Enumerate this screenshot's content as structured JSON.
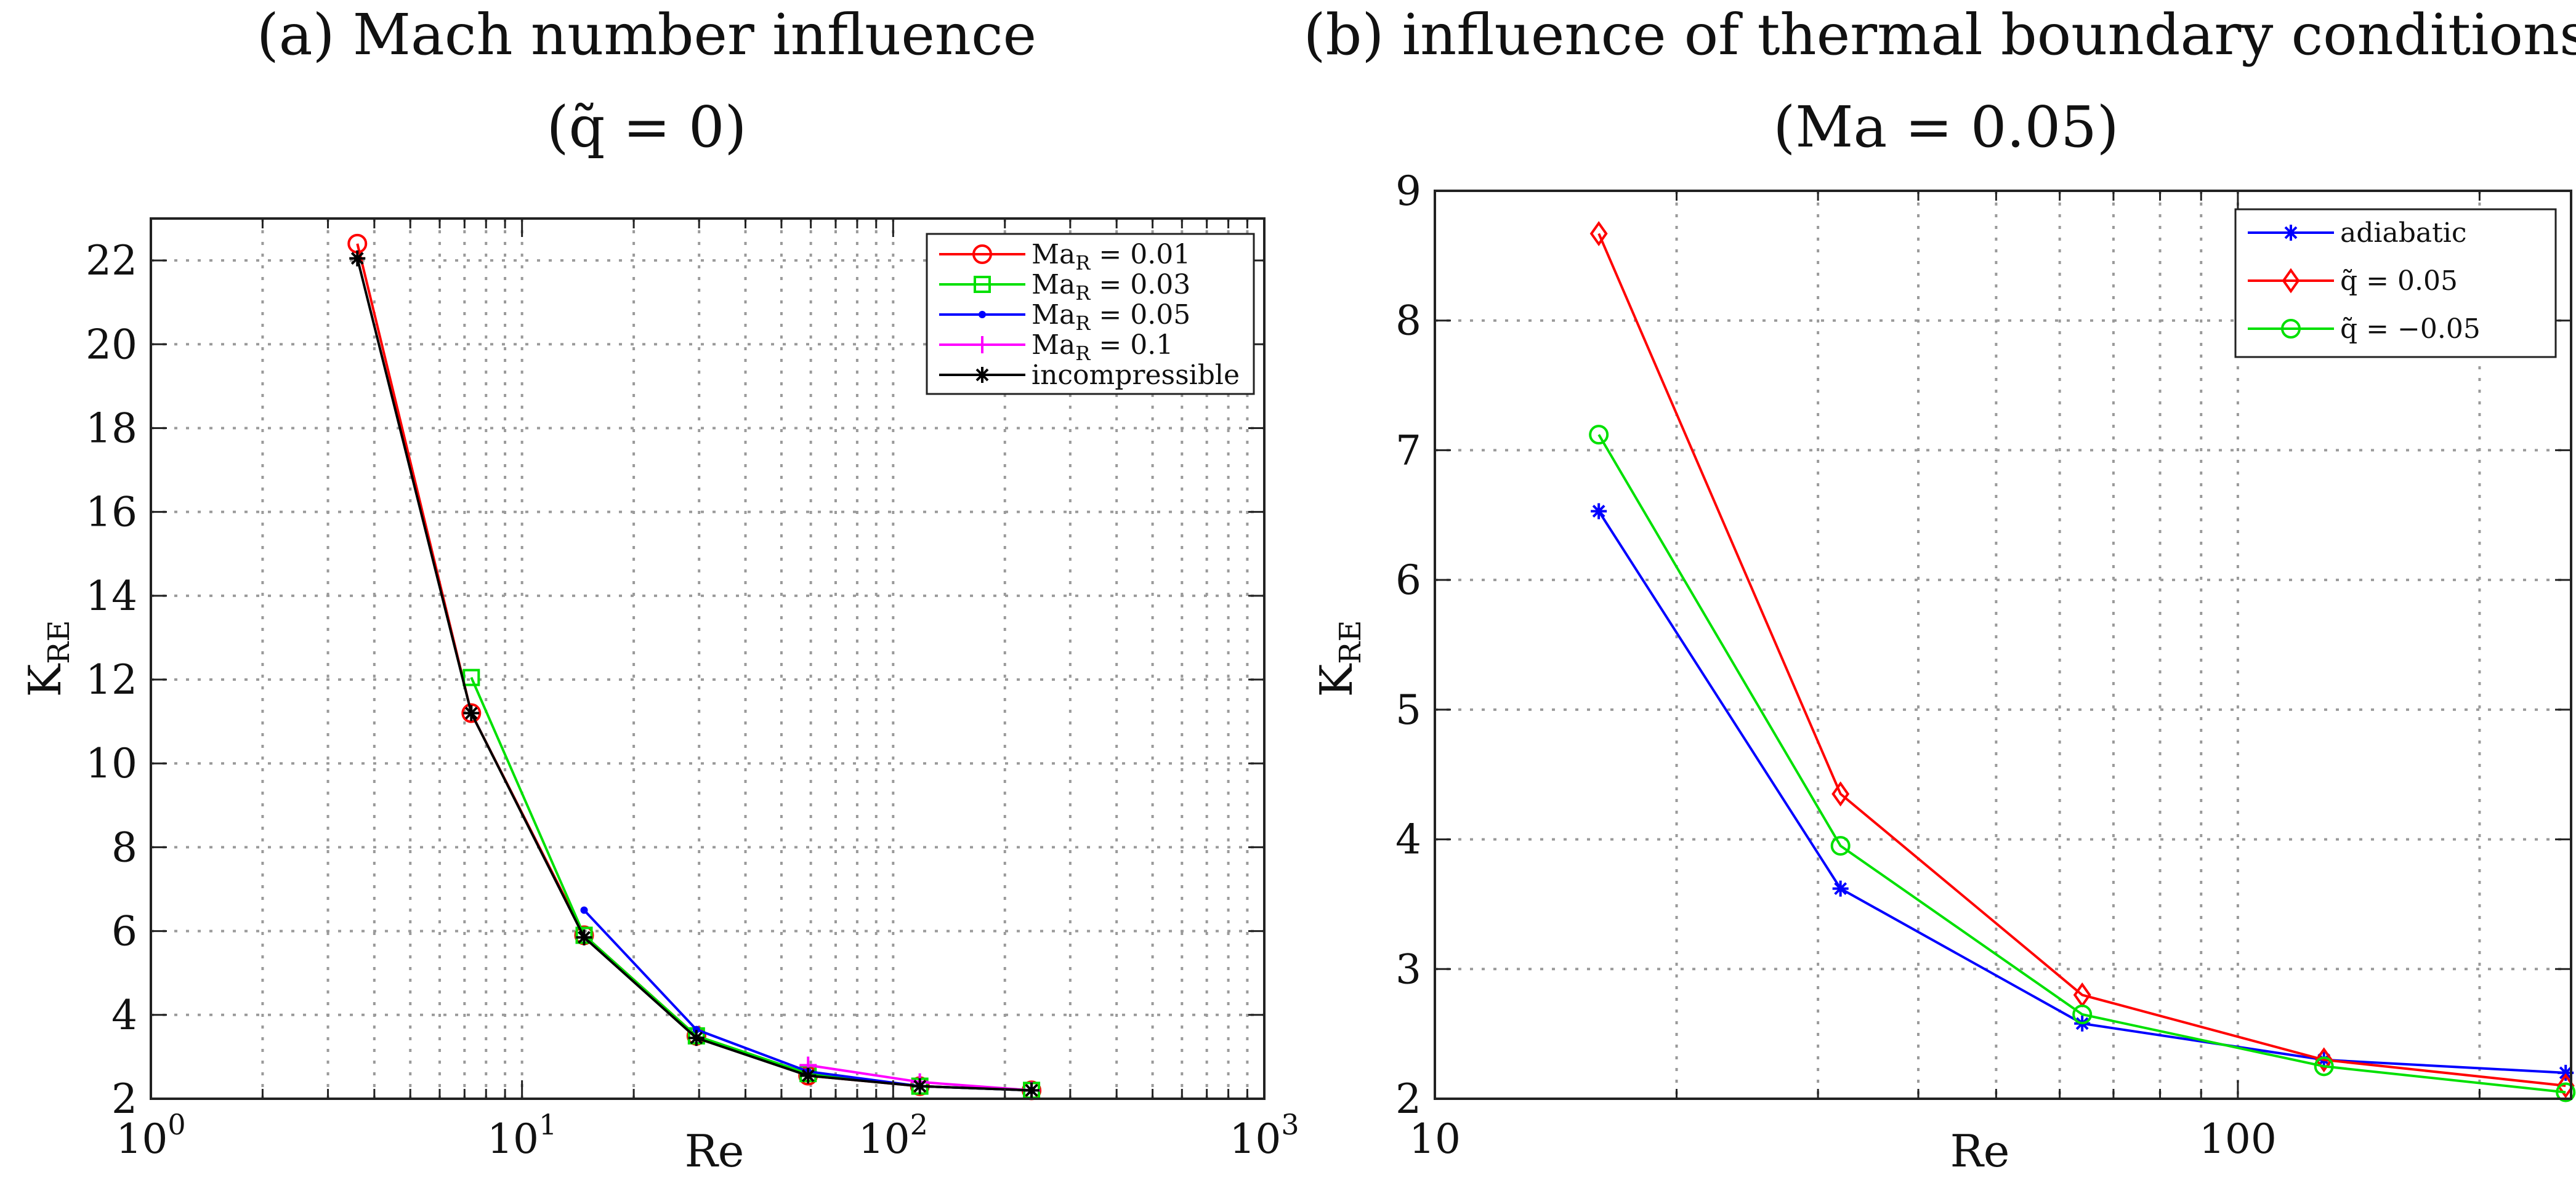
{
  "chart_data": [
    {
      "type": "line",
      "title_line1": "(a) Mach number influence",
      "title_line2": "(q̃ = 0)",
      "xlabel": "Re",
      "ylabel": "K",
      "ylabel_sub": "RE",
      "xscale": "log",
      "xlim": [
        1,
        1000
      ],
      "ylim": [
        2,
        23
      ],
      "grid": true,
      "legend_location": "top-right",
      "xticks": [
        {
          "value": 1,
          "base": "10",
          "exp": "0"
        },
        {
          "value": 10,
          "base": "10",
          "exp": "1"
        },
        {
          "value": 100,
          "base": "10",
          "exp": "2"
        },
        {
          "value": 1000,
          "base": "10",
          "exp": "3"
        }
      ],
      "yticks": [
        2,
        4,
        6,
        8,
        10,
        12,
        14,
        16,
        18,
        20,
        22
      ],
      "series": [
        {
          "name": "Ma",
          "name_sub": "R",
          "name_value": " = 0.01",
          "color": "#ff0000",
          "marker": "circle",
          "x": [
            3.6,
            7.3,
            14.7,
            29.5,
            59,
            118,
            236
          ],
          "y": [
            22.4,
            11.2,
            5.9,
            3.5,
            2.55,
            2.3,
            2.2
          ]
        },
        {
          "name": "Ma",
          "name_sub": "R",
          "name_value": " = 0.03",
          "color": "#00e000",
          "marker": "square",
          "x": [
            7.3,
            14.7,
            29.5,
            59,
            118,
            236
          ],
          "y": [
            12.05,
            5.9,
            3.5,
            2.6,
            2.3,
            2.2
          ]
        },
        {
          "name": "Ma",
          "name_sub": "R",
          "name_value": " = 0.05",
          "color": "#0000ff",
          "marker": "dot",
          "x": [
            14.7,
            29.5,
            59,
            118,
            236
          ],
          "y": [
            6.5,
            3.65,
            2.65,
            2.3,
            2.2
          ]
        },
        {
          "name": "Ma",
          "name_sub": "R",
          "name_value": " = 0.1",
          "color": "#ff00ff",
          "marker": "plus",
          "x": [
            59,
            118,
            236
          ],
          "y": [
            2.8,
            2.4,
            2.2
          ]
        },
        {
          "name": "incompressible",
          "name_sub": "",
          "name_value": "",
          "color": "#000000",
          "marker": "star",
          "x": [
            3.6,
            7.3,
            14.7,
            29.5,
            59,
            118,
            236
          ],
          "y": [
            22.05,
            11.2,
            5.85,
            3.45,
            2.55,
            2.3,
            2.2
          ]
        }
      ]
    },
    {
      "type": "line",
      "title_line1": "(b) influence of thermal boundary conditions",
      "title_line2": "(Ma = 0.05)",
      "xlabel": "Re",
      "ylabel": "K",
      "ylabel_sub": "RE",
      "xscale": "log",
      "xlim": [
        10,
        260
      ],
      "ylim": [
        2,
        9
      ],
      "grid": true,
      "legend_location": "top-right",
      "xticks": [
        {
          "value": 10,
          "label": "10"
        },
        {
          "value": 100,
          "label": "100"
        }
      ],
      "yticks": [
        2,
        3,
        4,
        5,
        6,
        7,
        8,
        9
      ],
      "series": [
        {
          "name": "adiabatic",
          "color": "#0000ff",
          "marker": "star",
          "x": [
            16,
            32,
            64,
            128,
            256
          ],
          "y": [
            6.53,
            3.62,
            2.58,
            2.3,
            2.2
          ]
        },
        {
          "name": "q̃ = 0.05",
          "color": "#ff0000",
          "marker": "diamond",
          "x": [
            16,
            32,
            64,
            128,
            256
          ],
          "y": [
            8.67,
            4.35,
            2.8,
            2.3,
            2.1
          ]
        },
        {
          "name": "q̃ = −0.05",
          "color": "#00e000",
          "marker": "circle",
          "x": [
            16,
            32,
            64,
            128,
            256
          ],
          "y": [
            7.12,
            3.95,
            2.65,
            2.25,
            2.05
          ]
        }
      ]
    }
  ]
}
